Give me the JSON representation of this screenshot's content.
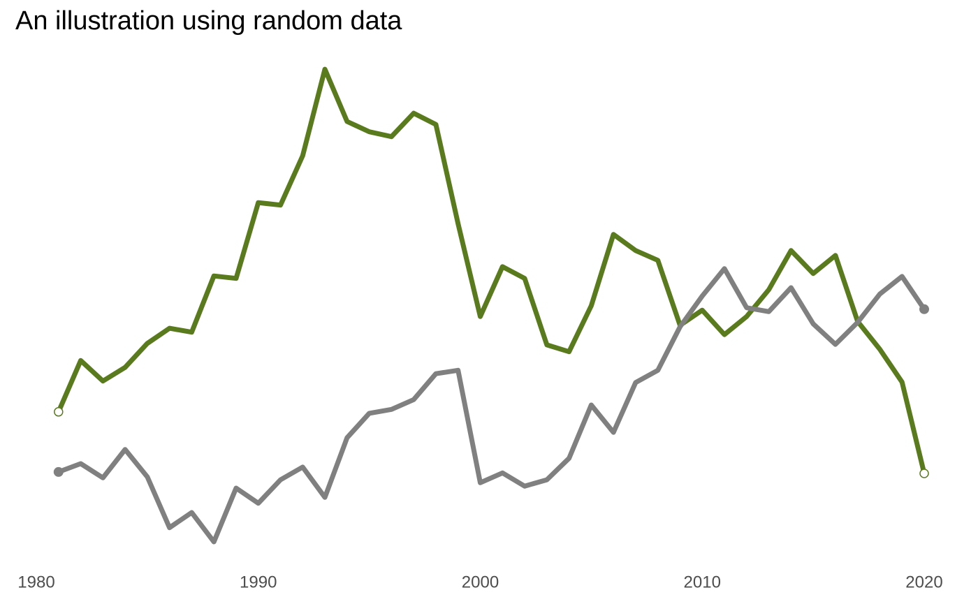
{
  "chart_data": {
    "type": "line",
    "title": "An illustration using random data",
    "x": [
      1981,
      1982,
      1983,
      1984,
      1985,
      1986,
      1987,
      1988,
      1989,
      1990,
      1991,
      1992,
      1993,
      1994,
      1995,
      1996,
      1997,
      1998,
      1999,
      2000,
      2001,
      2002,
      2003,
      2004,
      2005,
      2006,
      2007,
      2008,
      2009,
      2010,
      2011,
      2012,
      2013,
      2014,
      2015,
      2016,
      2017,
      2018,
      2019,
      2020
    ],
    "series": [
      {
        "color": "#5a7a1e",
        "endpoint_marker": "open",
        "values": [
          28.6,
          39.1,
          34.9,
          37.7,
          42.6,
          45.7,
          44.9,
          56.4,
          55.9,
          71.4,
          70.9,
          81.0,
          98.7,
          88.0,
          85.9,
          84.9,
          89.7,
          87.4,
          67.1,
          48.1,
          58.3,
          55.9,
          42.3,
          40.9,
          50.3,
          64.9,
          61.6,
          59.6,
          46.3,
          49.4,
          44.4,
          48.1,
          53.6,
          61.6,
          56.9,
          60.6,
          47.1,
          41.4,
          34.7,
          16.0
        ]
      },
      {
        "color": "#808080",
        "endpoint_marker": "filled",
        "values": [
          16.3,
          18.0,
          15.1,
          20.9,
          15.3,
          4.9,
          8.0,
          2.0,
          13.0,
          9.9,
          14.7,
          17.3,
          11.1,
          23.3,
          28.3,
          29.1,
          31.1,
          36.4,
          37.1,
          14.1,
          16.1,
          13.4,
          14.7,
          19.1,
          30.0,
          24.4,
          34.6,
          37.1,
          46.0,
          52.3,
          57.9,
          49.9,
          49.1,
          54.0,
          46.6,
          42.4,
          46.9,
          52.7,
          56.3,
          49.6
        ]
      }
    ],
    "xlim": [
      1980,
      2020
    ],
    "xticks": [
      1980,
      1990,
      2000,
      2010,
      2020
    ],
    "ylim": [
      0,
      100
    ],
    "grid": false
  }
}
